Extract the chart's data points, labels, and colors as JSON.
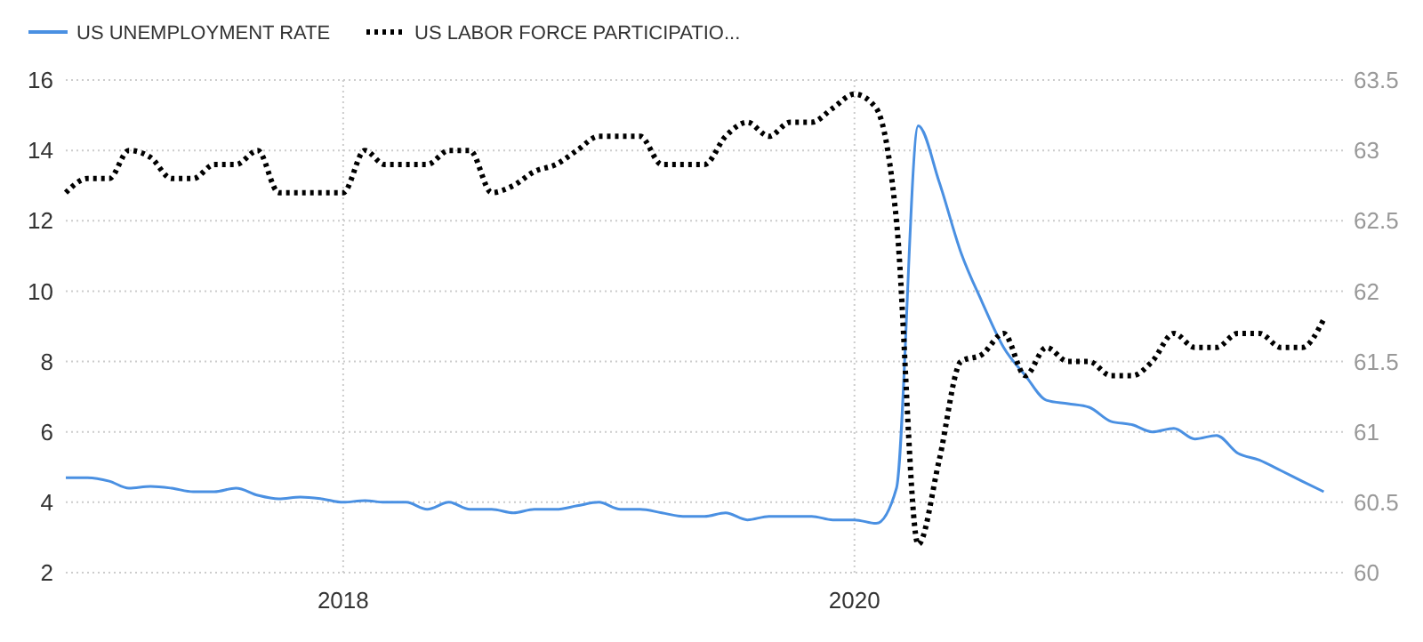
{
  "chart_data": {
    "type": "line",
    "x": [
      "2016-12",
      "2017-01",
      "2017-02",
      "2017-03",
      "2017-04",
      "2017-05",
      "2017-06",
      "2017-07",
      "2017-08",
      "2017-09",
      "2017-10",
      "2017-11",
      "2017-12",
      "2018-01",
      "2018-02",
      "2018-03",
      "2018-04",
      "2018-05",
      "2018-06",
      "2018-07",
      "2018-08",
      "2018-09",
      "2018-10",
      "2018-11",
      "2018-12",
      "2019-01",
      "2019-02",
      "2019-03",
      "2019-04",
      "2019-05",
      "2019-06",
      "2019-07",
      "2019-08",
      "2019-09",
      "2019-10",
      "2019-11",
      "2019-12",
      "2020-01",
      "2020-02",
      "2020-03",
      "2020-04",
      "2020-05",
      "2020-06",
      "2020-07",
      "2020-08",
      "2020-09",
      "2020-10",
      "2020-11",
      "2020-12",
      "2021-01",
      "2021-02",
      "2021-03",
      "2021-04",
      "2021-05",
      "2021-06",
      "2021-07",
      "2021-08",
      "2021-09",
      "2021-10",
      "2021-11"
    ],
    "series": [
      {
        "name": "US UNEMPLOYMENT RATE",
        "color": "#4a90e2",
        "line_style": "solid",
        "values": [
          4.7,
          4.7,
          4.6,
          4.4,
          4.45,
          4.4,
          4.3,
          4.3,
          4.4,
          4.2,
          4.1,
          4.15,
          4.1,
          4.0,
          4.05,
          4.0,
          4.0,
          3.8,
          4.0,
          3.8,
          3.8,
          3.7,
          3.8,
          3.8,
          3.9,
          4.0,
          3.8,
          3.8,
          3.7,
          3.6,
          3.6,
          3.7,
          3.5,
          3.6,
          3.6,
          3.6,
          3.5,
          3.5,
          3.4,
          4.4,
          14.7,
          13.1,
          11.1,
          9.7,
          8.4,
          7.6,
          6.9,
          6.8,
          6.7,
          6.3,
          6.2,
          6.0,
          6.1,
          5.8,
          5.9,
          5.4,
          5.2,
          4.9,
          4.6,
          4.3
        ]
      },
      {
        "name": "US LABOR FORCE PARTICIPATIO...",
        "color": "#000000",
        "line_style": "dotted",
        "axis": "y2",
        "values": [
          62.7,
          62.8,
          62.8,
          63.0,
          62.95,
          62.8,
          62.8,
          62.9,
          62.9,
          63.0,
          62.7,
          62.7,
          62.7,
          62.7,
          63.0,
          62.9,
          62.9,
          62.9,
          63.0,
          63.0,
          62.7,
          62.75,
          62.85,
          62.9,
          63.0,
          63.1,
          63.1,
          63.1,
          62.9,
          62.9,
          62.9,
          63.1,
          63.2,
          63.1,
          63.2,
          63.2,
          63.3,
          63.4,
          63.3,
          62.5,
          60.2,
          60.8,
          61.5,
          61.55,
          61.7,
          61.4,
          61.6,
          61.5,
          61.5,
          61.4,
          61.4,
          61.5,
          61.7,
          61.6,
          61.6,
          61.7,
          61.7,
          61.6,
          61.6,
          61.8
        ]
      }
    ],
    "xlim": [
      "2016-12",
      "2021-12"
    ],
    "xticks": [
      {
        "value": "2018-01",
        "label": "2018"
      },
      {
        "value": "2020-01",
        "label": "2020"
      }
    ],
    "ylim": [
      2,
      16
    ],
    "yticks": [
      2,
      4,
      6,
      8,
      10,
      12,
      14,
      16
    ],
    "y2lim": [
      60,
      63.5
    ],
    "y2ticks": [
      60,
      60.5,
      61,
      61.5,
      62,
      62.5,
      63,
      63.5
    ],
    "grid": true,
    "legend": "top left"
  }
}
